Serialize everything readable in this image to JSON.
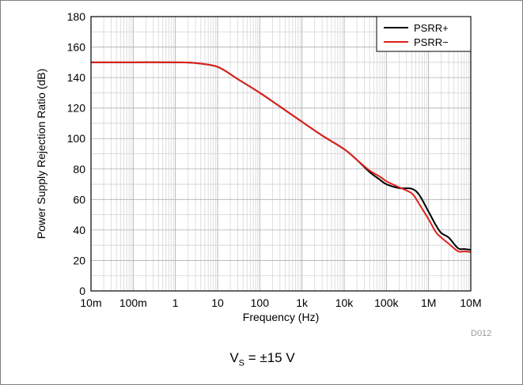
{
  "chart_data": {
    "type": "line",
    "xscale": "log",
    "xlim": [
      0.01,
      10000000
    ],
    "ylim": [
      0,
      180
    ],
    "xlabel": "Frequency (Hz)",
    "ylabel": "Power Supply Rejection Ratio (dB)",
    "x_tick_labels": [
      "10m",
      "100m",
      "1",
      "10",
      "100",
      "1k",
      "10k",
      "100k",
      "1M",
      "10M"
    ],
    "y_tick_labels": [
      "0",
      "20",
      "40",
      "60",
      "80",
      "100",
      "120",
      "140",
      "160",
      "180"
    ],
    "grid": true,
    "legend_position": "top-right",
    "series": [
      {
        "name": "PSRR+",
        "color": "#000000",
        "points": [
          [
            0.01,
            150
          ],
          [
            0.1,
            150
          ],
          [
            1,
            150
          ],
          [
            3,
            149.5
          ],
          [
            10,
            147
          ],
          [
            30,
            139
          ],
          [
            100,
            130
          ],
          [
            300,
            121
          ],
          [
            1000,
            111
          ],
          [
            3000,
            102
          ],
          [
            10000,
            93
          ],
          [
            20000,
            86
          ],
          [
            40000,
            78
          ],
          [
            70000,
            73
          ],
          [
            100000,
            70
          ],
          [
            200000,
            67.5
          ],
          [
            400000,
            67
          ],
          [
            600000,
            63
          ],
          [
            1000000,
            52
          ],
          [
            1500000,
            43
          ],
          [
            2000000,
            38
          ],
          [
            3000000,
            35
          ],
          [
            5000000,
            28
          ],
          [
            7000000,
            27.5
          ],
          [
            10000000,
            27
          ]
        ]
      },
      {
        "name": "PSRR−",
        "color": "#e0201c",
        "points": [
          [
            0.01,
            150
          ],
          [
            0.1,
            150
          ],
          [
            1,
            150
          ],
          [
            3,
            149.5
          ],
          [
            10,
            147
          ],
          [
            30,
            139
          ],
          [
            100,
            130
          ],
          [
            300,
            121
          ],
          [
            1000,
            111
          ],
          [
            3000,
            102
          ],
          [
            10000,
            93
          ],
          [
            20000,
            86
          ],
          [
            40000,
            79
          ],
          [
            70000,
            75
          ],
          [
            100000,
            72
          ],
          [
            200000,
            68
          ],
          [
            400000,
            64
          ],
          [
            600000,
            57
          ],
          [
            1000000,
            47
          ],
          [
            1500000,
            38.5
          ],
          [
            2000000,
            35
          ],
          [
            3000000,
            31
          ],
          [
            5000000,
            26
          ],
          [
            7000000,
            26
          ],
          [
            10000000,
            25.5
          ]
        ]
      }
    ]
  },
  "figure_id": "D012",
  "caption": {
    "prefix": "V",
    "subscript": "S",
    "suffix": " = ±15 V"
  }
}
